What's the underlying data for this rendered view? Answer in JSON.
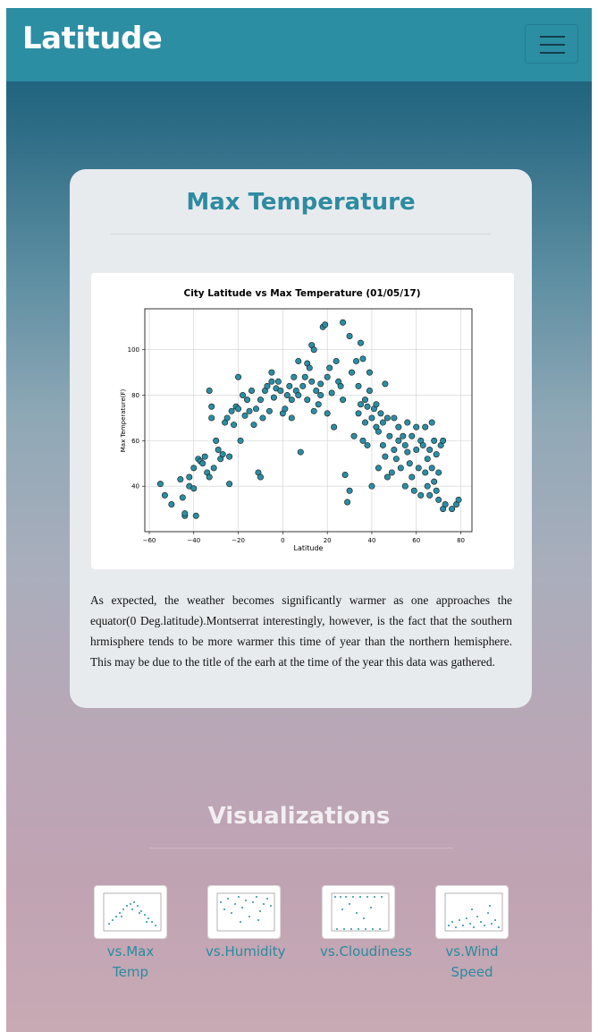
{
  "navbar": {
    "brand": "Latitude",
    "menu_icon": "hamburger-icon"
  },
  "card": {
    "title": "Max Temperature",
    "description": "As expected, the weather becomes significantly warmer as one approaches the equator(0 Deg.latitude).Montserrat interestingly, however, is the fact that the southern hrmisphere tends to be more warmer this time of year than the northern hemisphere. This may be due to the title of the earh at the time of the year this data was gathered."
  },
  "chart_data": {
    "type": "scatter",
    "title": "City Latitude vs Max Temperature (01/05/17)",
    "xlabel": "Latitude",
    "ylabel": "Max Temperature(F)",
    "xlim": [
      -62,
      85
    ],
    "ylim": [
      20,
      118
    ],
    "xticks": [
      -60,
      -40,
      -20,
      0,
      20,
      40,
      60,
      80
    ],
    "yticks": [
      40,
      60,
      80,
      100
    ],
    "grid": true,
    "point_color": "#2b8ea3",
    "points": [
      [
        -55,
        41
      ],
      [
        -53,
        36
      ],
      [
        -50,
        32
      ],
      [
        -46,
        43
      ],
      [
        -45,
        35
      ],
      [
        -44,
        27
      ],
      [
        -44,
        28
      ],
      [
        -42,
        44
      ],
      [
        -42,
        40
      ],
      [
        -40,
        39
      ],
      [
        -40,
        48
      ],
      [
        -39,
        27
      ],
      [
        -38,
        52
      ],
      [
        -37,
        51
      ],
      [
        -36,
        50
      ],
      [
        -35,
        53
      ],
      [
        -34,
        46
      ],
      [
        -33,
        44
      ],
      [
        -33,
        82
      ],
      [
        -32,
        75
      ],
      [
        -32,
        70
      ],
      [
        -31,
        48
      ],
      [
        -30,
        60
      ],
      [
        -29,
        56
      ],
      [
        -28,
        52
      ],
      [
        -27,
        54
      ],
      [
        -26,
        68
      ],
      [
        -25,
        70
      ],
      [
        -24,
        53
      ],
      [
        -24,
        41
      ],
      [
        -23,
        73
      ],
      [
        -22,
        67
      ],
      [
        -21,
        75
      ],
      [
        -20,
        74
      ],
      [
        -20,
        88
      ],
      [
        -19,
        60
      ],
      [
        -18,
        80
      ],
      [
        -17,
        71
      ],
      [
        -16,
        78
      ],
      [
        -15,
        73
      ],
      [
        -14,
        82
      ],
      [
        -13,
        67
      ],
      [
        -12,
        74
      ],
      [
        -11,
        46
      ],
      [
        -10,
        44
      ],
      [
        -10,
        78
      ],
      [
        -9,
        70
      ],
      [
        -8,
        82
      ],
      [
        -7,
        84
      ],
      [
        -6,
        73
      ],
      [
        -5,
        86
      ],
      [
        -5,
        90
      ],
      [
        -4,
        79
      ],
      [
        -3,
        83
      ],
      [
        -2,
        86
      ],
      [
        -1,
        82
      ],
      [
        0,
        72
      ],
      [
        1,
        74
      ],
      [
        2,
        80
      ],
      [
        3,
        84
      ],
      [
        4,
        78
      ],
      [
        4,
        70
      ],
      [
        5,
        88
      ],
      [
        6,
        82
      ],
      [
        7,
        80
      ],
      [
        7,
        95
      ],
      [
        8,
        55
      ],
      [
        9,
        84
      ],
      [
        10,
        88
      ],
      [
        11,
        78
      ],
      [
        11,
        94
      ],
      [
        12,
        92
      ],
      [
        13,
        86
      ],
      [
        13,
        102
      ],
      [
        14,
        100
      ],
      [
        14,
        73
      ],
      [
        15,
        82
      ],
      [
        16,
        76
      ],
      [
        17,
        80
      ],
      [
        17,
        85
      ],
      [
        18,
        110
      ],
      [
        19,
        111
      ],
      [
        20,
        72
      ],
      [
        20,
        88
      ],
      [
        21,
        92
      ],
      [
        22,
        81
      ],
      [
        23,
        66
      ],
      [
        24,
        95
      ],
      [
        25,
        86
      ],
      [
        26,
        84
      ],
      [
        27,
        112
      ],
      [
        27,
        78
      ],
      [
        28,
        45
      ],
      [
        29,
        33
      ],
      [
        30,
        106
      ],
      [
        30,
        38
      ],
      [
        31,
        90
      ],
      [
        32,
        62
      ],
      [
        33,
        95
      ],
      [
        34,
        84
      ],
      [
        34,
        72
      ],
      [
        35,
        76
      ],
      [
        35,
        103
      ],
      [
        36,
        60
      ],
      [
        36,
        96
      ],
      [
        37,
        78
      ],
      [
        37,
        68
      ],
      [
        38,
        75
      ],
      [
        38,
        58
      ],
      [
        39,
        82
      ],
      [
        39,
        90
      ],
      [
        40,
        40
      ],
      [
        40,
        70
      ],
      [
        41,
        74
      ],
      [
        42,
        66
      ],
      [
        42,
        76
      ],
      [
        43,
        48
      ],
      [
        43,
        64
      ],
      [
        44,
        72
      ],
      [
        45,
        58
      ],
      [
        45,
        68
      ],
      [
        46,
        53
      ],
      [
        46,
        85
      ],
      [
        47,
        44
      ],
      [
        47,
        70
      ],
      [
        48,
        62
      ],
      [
        49,
        46
      ],
      [
        50,
        56
      ],
      [
        50,
        70
      ],
      [
        51,
        52
      ],
      [
        52,
        60
      ],
      [
        52,
        66
      ],
      [
        53,
        48
      ],
      [
        54,
        62
      ],
      [
        55,
        40
      ],
      [
        55,
        58
      ],
      [
        56,
        55
      ],
      [
        56,
        68
      ],
      [
        57,
        50
      ],
      [
        58,
        44
      ],
      [
        58,
        62
      ],
      [
        59,
        38
      ],
      [
        60,
        56
      ],
      [
        60,
        66
      ],
      [
        61,
        48
      ],
      [
        62,
        36
      ],
      [
        62,
        60
      ],
      [
        63,
        58
      ],
      [
        64,
        46
      ],
      [
        64,
        66
      ],
      [
        65,
        40
      ],
      [
        65,
        52
      ],
      [
        66,
        36
      ],
      [
        66,
        56
      ],
      [
        67,
        48
      ],
      [
        67,
        68
      ],
      [
        68,
        42
      ],
      [
        68,
        60
      ],
      [
        69,
        38
      ],
      [
        69,
        54
      ],
      [
        70,
        34
      ],
      [
        70,
        46
      ],
      [
        71,
        58
      ],
      [
        72,
        30
      ],
      [
        72,
        60
      ],
      [
        73,
        32
      ],
      [
        76,
        30
      ],
      [
        78,
        32
      ],
      [
        79,
        34
      ]
    ]
  },
  "visualizations": {
    "title": "Visualizations",
    "items": [
      {
        "label": "vs.Max Temp"
      },
      {
        "label": "vs.Humidity"
      },
      {
        "label": "vs.Cloudiness"
      },
      {
        "label": "vs.Wind Speed"
      }
    ]
  }
}
